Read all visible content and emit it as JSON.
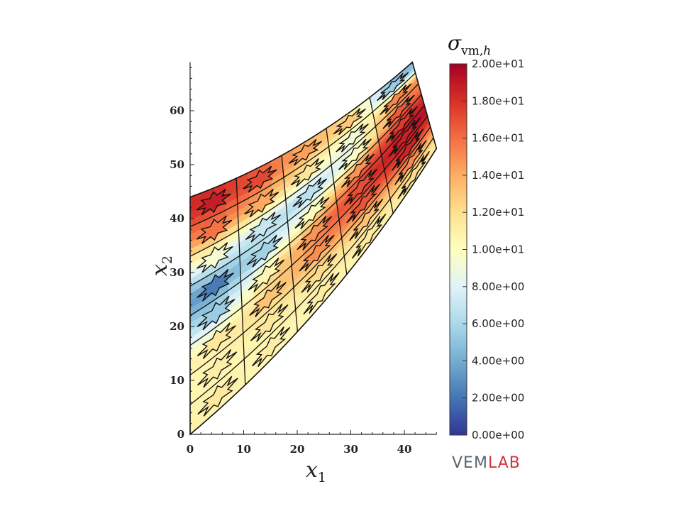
{
  "chart_data": {
    "type": "heatmap",
    "title": "",
    "xlabel": "x1",
    "ylabel": "x2",
    "x_ticks": [
      "0",
      "10",
      "20",
      "30",
      "40"
    ],
    "y_ticks": [
      "0",
      "10",
      "20",
      "30",
      "40",
      "50",
      "60"
    ],
    "xlim": [
      0,
      46
    ],
    "ylim": [
      0,
      69
    ],
    "colorbar": {
      "title": "σvm,h",
      "min": 0,
      "max": 20,
      "tick_labels": [
        "0.00e+00",
        "2.00e+00",
        "4.00e+00",
        "6.00e+00",
        "8.00e+00",
        "1.00e+01",
        "1.20e+01",
        "1.40e+01",
        "1.60e+01",
        "1.80e+01",
        "2.00e+01"
      ],
      "colormap": [
        "#313695",
        "#4575b4",
        "#74add1",
        "#abd9e9",
        "#e0f3f8",
        "#ffffbf",
        "#fee090",
        "#fdae61",
        "#f46d43",
        "#d73027",
        "#a50026"
      ]
    },
    "mesh": {
      "columns": 5,
      "rows": 8,
      "domain_corners": {
        "bottom_left": [
          0,
          0
        ],
        "top_left": [
          0,
          44
        ],
        "bottom_right": [
          46,
          53
        ],
        "top_right": [
          41.5,
          69
        ]
      },
      "stress_by_row": [
        [
          10.8,
          10.5,
          10.6,
          10.8,
          11.5
        ],
        [
          10.5,
          10.9,
          11.6,
          12.6,
          14.5
        ],
        [
          10.9,
          12.6,
          14.4,
          16.2,
          17.8
        ],
        [
          6.2,
          11.4,
          15.6,
          17.8,
          19.4
        ],
        [
          3.0,
          6.5,
          10.8,
          15.6,
          18.4
        ],
        [
          8.8,
          6.5,
          6.0,
          9.2,
          16.0
        ],
        [
          15.2,
          13.5,
          11.0,
          8.6,
          14.6
        ],
        [
          18.2,
          16.6,
          13.8,
          12.4,
          4.8
        ]
      ]
    }
  },
  "logo": {
    "part1": "VEM",
    "part2": "LAB"
  }
}
